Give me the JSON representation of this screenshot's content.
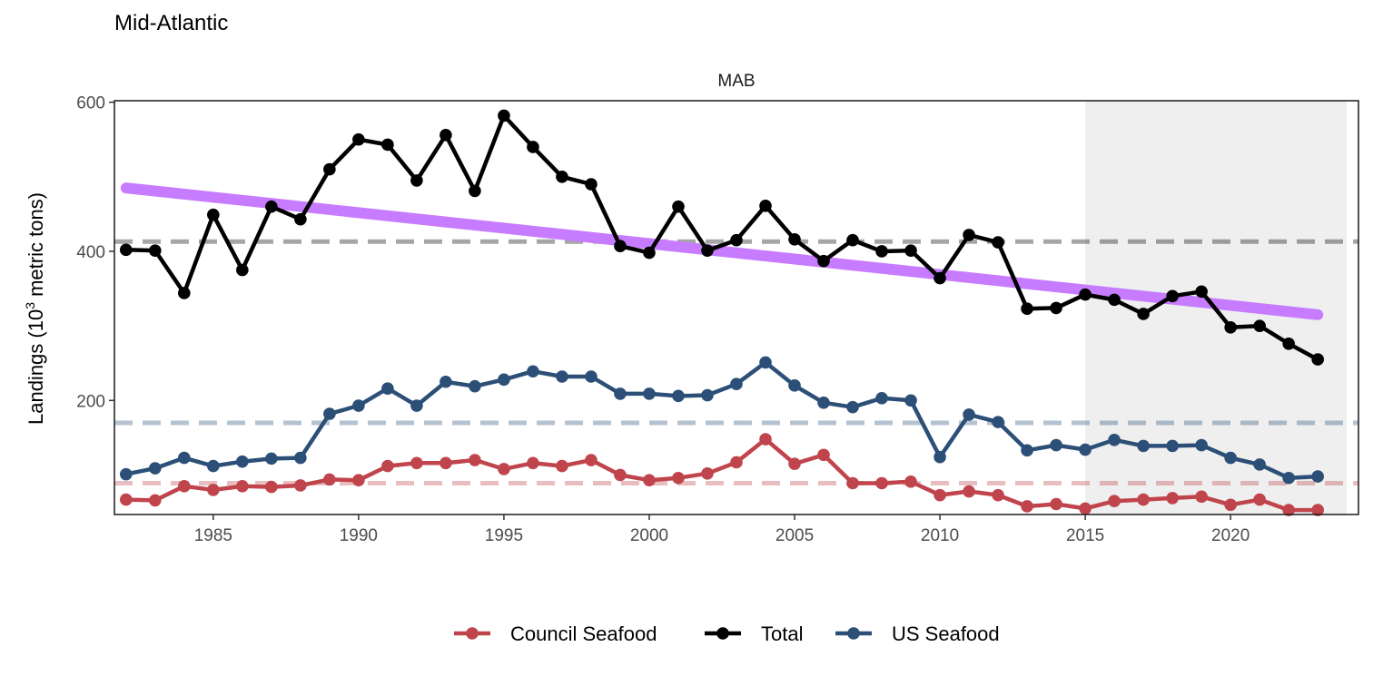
{
  "title": "Mid-Atlantic",
  "chart_data": {
    "type": "line",
    "title": "Mid-Atlantic",
    "panel": "MAB",
    "xlabel": "",
    "ylabel_main": "Landings (10",
    "ylabel_sup": "3",
    "ylabel_tail": " metric tons)",
    "xlim": [
      1981.6,
      2024.4
    ],
    "ylim": [
      47,
      602
    ],
    "xticks": [
      1985,
      1990,
      1995,
      2000,
      2005,
      2010,
      2015,
      2020
    ],
    "yticks": [
      200,
      400,
      600
    ],
    "shaded_region": {
      "x": [
        2015,
        2024
      ]
    },
    "x": [
      1982,
      1983,
      1984,
      1985,
      1986,
      1987,
      1988,
      1989,
      1990,
      1991,
      1992,
      1993,
      1994,
      1995,
      1996,
      1997,
      1998,
      1999,
      2000,
      2001,
      2002,
      2003,
      2004,
      2005,
      2006,
      2007,
      2008,
      2009,
      2010,
      2011,
      2012,
      2013,
      2014,
      2015,
      2016,
      2017,
      2018,
      2019,
      2020,
      2021,
      2022,
      2023
    ],
    "series": [
      {
        "name": "Council Seafood",
        "color": "#C0444B",
        "mean": 89,
        "values": [
          67,
          66,
          85,
          80,
          85,
          84,
          86,
          94,
          93,
          112,
          116,
          116,
          120,
          108,
          116,
          112,
          120,
          100,
          93,
          96,
          102,
          117,
          148,
          115,
          127,
          89,
          89,
          91,
          73,
          78,
          73,
          58,
          61,
          55,
          65,
          67,
          69,
          71,
          60,
          67,
          53,
          53
        ]
      },
      {
        "name": "Total",
        "color": "#000000",
        "mean": 413,
        "values": [
          402,
          401,
          344,
          449,
          375,
          460,
          443,
          510,
          550,
          543,
          495,
          556,
          481,
          582,
          540,
          500,
          490,
          407,
          398,
          460,
          401,
          415,
          461,
          416,
          387,
          415,
          400,
          401,
          364,
          422,
          412,
          323,
          324,
          342,
          335,
          316,
          340,
          346,
          298,
          300,
          276,
          255
        ]
      },
      {
        "name": "US Seafood",
        "color": "#2C4F77",
        "mean": 170,
        "values": [
          101,
          109,
          123,
          112,
          118,
          122,
          123,
          182,
          193,
          216,
          193,
          225,
          219,
          228,
          239,
          232,
          232,
          209,
          209,
          206,
          207,
          222,
          251,
          220,
          197,
          191,
          203,
          200,
          124,
          181,
          171,
          133,
          140,
          134,
          147,
          139,
          139,
          140,
          123,
          114,
          96,
          98
        ]
      }
    ],
    "trend": {
      "color": "#C77CFF",
      "x": [
        1982,
        2023
      ],
      "values": [
        485,
        315
      ]
    },
    "legend": {
      "position": "bottom",
      "items": [
        "Council Seafood",
        "Total",
        "US Seafood"
      ]
    },
    "grid": false
  }
}
